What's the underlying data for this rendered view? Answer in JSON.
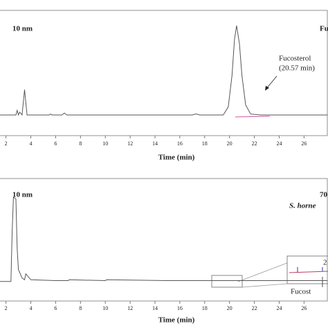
{
  "chart_data": [
    {
      "type": "line",
      "annotations": [
        "10 nm",
        "Fu",
        "Fucosterol",
        "(20.57 min)"
      ],
      "x_label": "Time (min)",
      "xlim": [
        1.52,
        27.93
      ],
      "ylim": [
        -22,
        117
      ],
      "xticks": [
        2,
        4,
        6,
        8,
        10,
        12,
        14,
        16,
        18,
        20,
        22,
        24,
        26
      ],
      "x": [
        1.5,
        2.5,
        2.8,
        2.9,
        3.0,
        3.1,
        3.3,
        3.5,
        3.7,
        4.0,
        5.5,
        5.6,
        5.7,
        6.5,
        6.7,
        6.9,
        10,
        17,
        17.3,
        17.6,
        19.5,
        19.9,
        20.2,
        20.4,
        20.57,
        20.8,
        21.0,
        21.3,
        21.7,
        22.5,
        27.9
      ],
      "series": [
        {
          "color": "#555555",
          "values": [
            1,
            1,
            1,
            6,
            1,
            4,
            1,
            29,
            1,
            1,
            1,
            2,
            1,
            1,
            3,
            1,
            1,
            1,
            2,
            1,
            1,
            10,
            45,
            85,
            100,
            80,
            45,
            12,
            2,
            1,
            1
          ]
        }
      ]
    },
    {
      "type": "line",
      "annotations": [
        "10 nm",
        "70",
        "S. horne",
        "Fucost",
        "2"
      ],
      "x_label": "Time (min)",
      "xlim": [
        1.52,
        27.93
      ],
      "ylim": [
        -22,
        122
      ],
      "xticks": [
        2,
        4,
        6,
        8,
        10,
        12,
        14,
        16,
        18,
        20,
        22,
        24,
        26
      ],
      "x": [
        1.5,
        2.4,
        2.5,
        2.6,
        2.8,
        2.9,
        3.0,
        3.3,
        3.5,
        3.6,
        4,
        6,
        7,
        7.1,
        10,
        10.1,
        15,
        16,
        27.9
      ],
      "series": [
        {
          "color": "#555555",
          "values": [
            1,
            1,
            60,
            100,
            98,
            40,
            15,
            5,
            3,
            10,
            3,
            2,
            2,
            3,
            2,
            3,
            2,
            2,
            2
          ]
        }
      ]
    }
  ]
}
